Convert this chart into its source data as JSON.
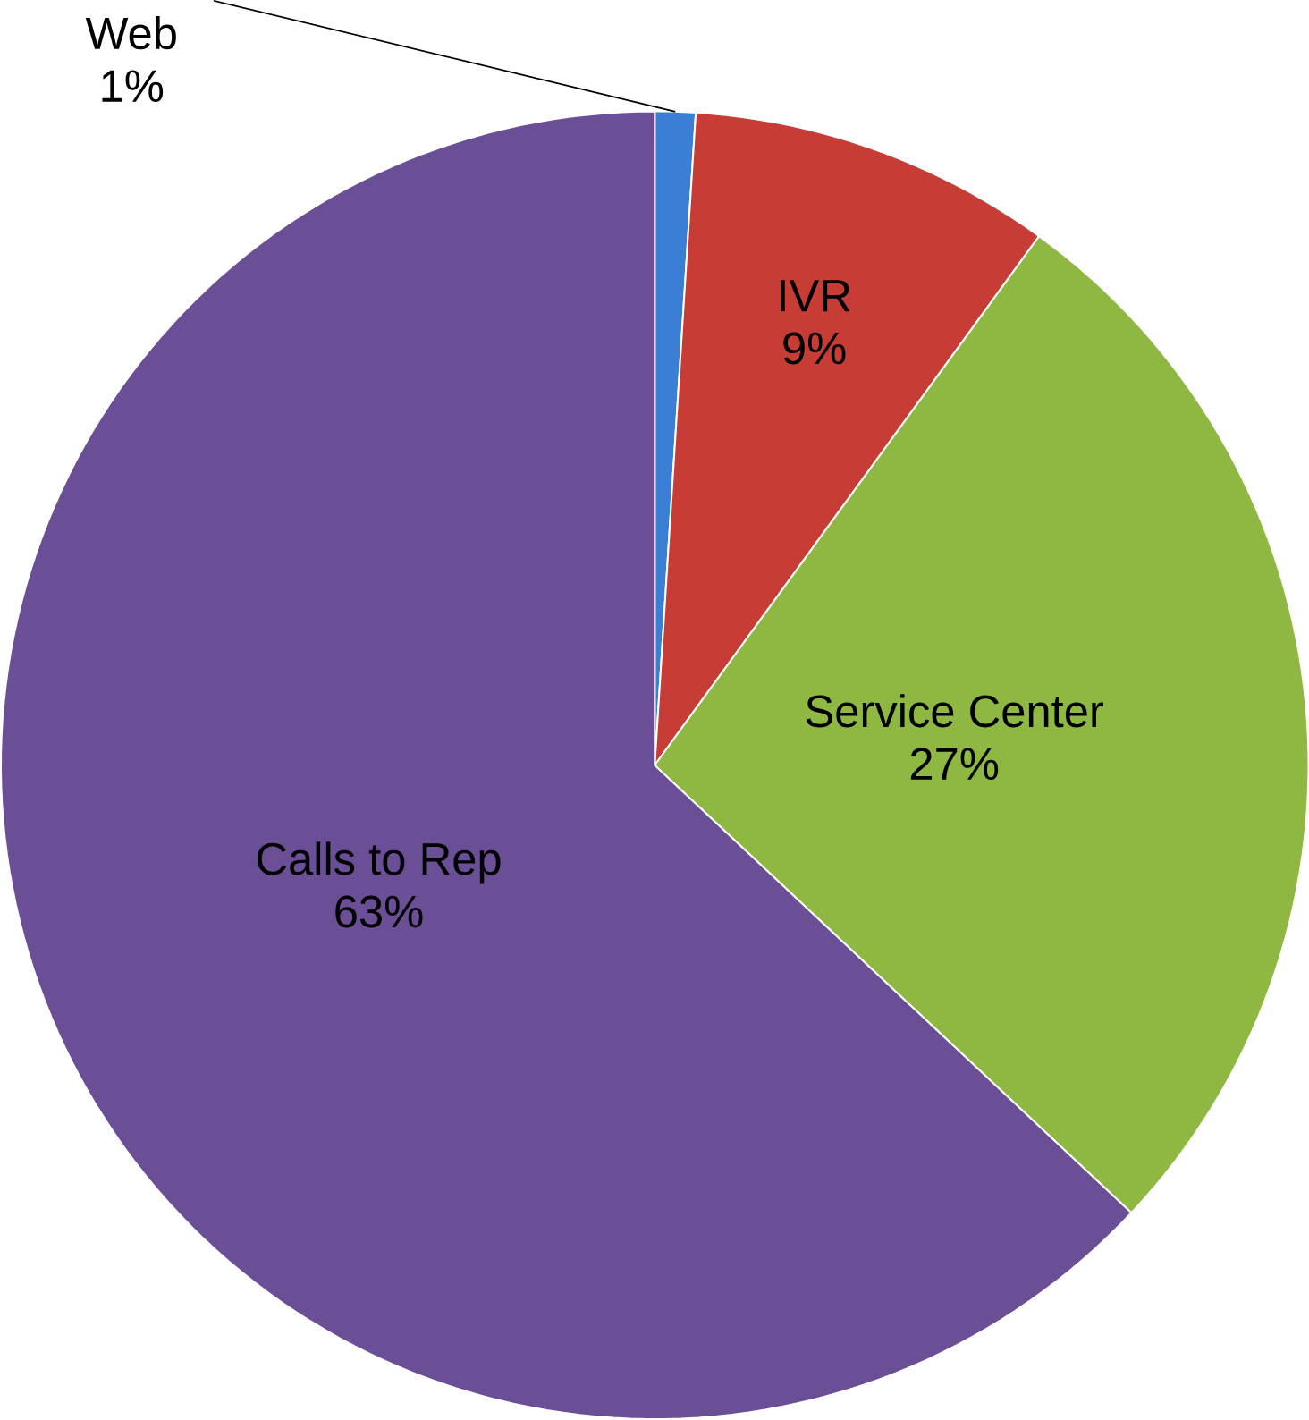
{
  "chart_data": {
    "type": "pie",
    "categories": [
      "Web",
      "IVR",
      "Service Center",
      "Calls to Rep"
    ],
    "values": [
      1,
      9,
      27,
      63
    ],
    "value_labels": [
      "1%",
      "9%",
      "27%",
      "63%"
    ],
    "colors": [
      "#3a7fd5",
      "#c83c36",
      "#8fb843",
      "#6b4f96"
    ]
  }
}
